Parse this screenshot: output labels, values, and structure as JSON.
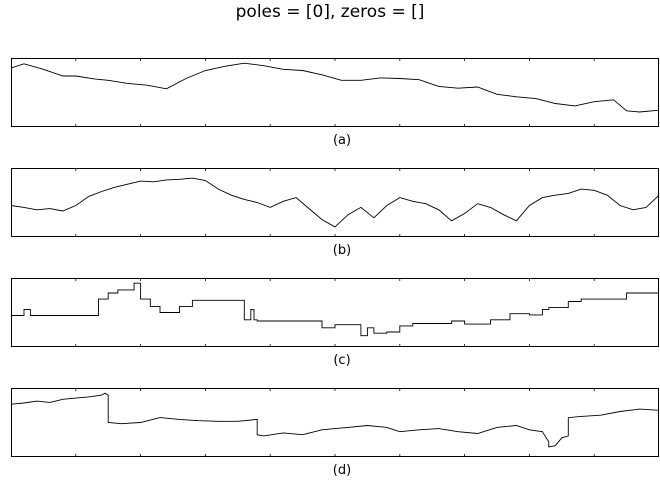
{
  "title": "poles = [0], zeros = []",
  "chart_data": [
    {
      "type": "line",
      "label": "(a)",
      "x_range": [
        0,
        1
      ],
      "y_range": [
        0,
        1
      ],
      "grid": false,
      "tick_labels": false,
      "series": [
        {
          "x": [
            0,
            0.02,
            0.05,
            0.08,
            0.1,
            0.13,
            0.15,
            0.18,
            0.21,
            0.24,
            0.27,
            0.3,
            0.33,
            0.36,
            0.39,
            0.42,
            0.45,
            0.48,
            0.51,
            0.54,
            0.57,
            0.6,
            0.63,
            0.66,
            0.69,
            0.72,
            0.75,
            0.78,
            0.81,
            0.84,
            0.87,
            0.9,
            0.93,
            0.95,
            0.97,
            1.0
          ],
          "y": [
            0.9,
            0.97,
            0.88,
            0.77,
            0.77,
            0.72,
            0.7,
            0.65,
            0.62,
            0.56,
            0.73,
            0.86,
            0.93,
            0.98,
            0.94,
            0.88,
            0.86,
            0.79,
            0.7,
            0.7,
            0.74,
            0.73,
            0.71,
            0.6,
            0.57,
            0.59,
            0.47,
            0.43,
            0.4,
            0.32,
            0.28,
            0.35,
            0.38,
            0.2,
            0.18,
            0.21
          ]
        }
      ]
    },
    {
      "type": "line",
      "label": "(b)",
      "x_range": [
        0,
        1
      ],
      "y_range": [
        0,
        1
      ],
      "grid": false,
      "tick_labels": false,
      "series": [
        {
          "x": [
            0,
            0.02,
            0.04,
            0.06,
            0.08,
            0.1,
            0.12,
            0.14,
            0.16,
            0.18,
            0.2,
            0.22,
            0.24,
            0.26,
            0.28,
            0.3,
            0.32,
            0.34,
            0.36,
            0.38,
            0.4,
            0.42,
            0.44,
            0.46,
            0.48,
            0.5,
            0.52,
            0.54,
            0.56,
            0.58,
            0.6,
            0.62,
            0.64,
            0.66,
            0.68,
            0.7,
            0.72,
            0.74,
            0.76,
            0.78,
            0.8,
            0.82,
            0.84,
            0.86,
            0.88,
            0.9,
            0.92,
            0.94,
            0.96,
            0.98,
            1.0
          ],
          "y": [
            0.45,
            0.42,
            0.38,
            0.4,
            0.36,
            0.45,
            0.6,
            0.68,
            0.75,
            0.8,
            0.85,
            0.84,
            0.87,
            0.88,
            0.9,
            0.86,
            0.72,
            0.62,
            0.55,
            0.5,
            0.42,
            0.52,
            0.58,
            0.4,
            0.22,
            0.1,
            0.3,
            0.42,
            0.25,
            0.45,
            0.58,
            0.52,
            0.48,
            0.38,
            0.2,
            0.32,
            0.48,
            0.42,
            0.3,
            0.2,
            0.45,
            0.58,
            0.62,
            0.65,
            0.72,
            0.7,
            0.62,
            0.45,
            0.38,
            0.42,
            0.62
          ]
        }
      ]
    },
    {
      "type": "line",
      "label": "(c)",
      "x_range": [
        0,
        1
      ],
      "y_range": [
        0,
        1
      ],
      "grid": false,
      "tick_labels": false,
      "series": [
        {
          "x": [
            0,
            0.02,
            0.02,
            0.03,
            0.03,
            0.135,
            0.135,
            0.15,
            0.15,
            0.165,
            0.165,
            0.19,
            0.19,
            0.2,
            0.2,
            0.215,
            0.215,
            0.23,
            0.23,
            0.26,
            0.26,
            0.28,
            0.28,
            0.36,
            0.36,
            0.37,
            0.37,
            0.375,
            0.375,
            0.38,
            0.38,
            0.48,
            0.48,
            0.5,
            0.5,
            0.54,
            0.54,
            0.55,
            0.55,
            0.56,
            0.56,
            0.58,
            0.58,
            0.6,
            0.6,
            0.62,
            0.62,
            0.68,
            0.68,
            0.7,
            0.7,
            0.74,
            0.74,
            0.77,
            0.77,
            0.8,
            0.8,
            0.82,
            0.82,
            0.83,
            0.83,
            0.86,
            0.86,
            0.88,
            0.88,
            0.95,
            0.95,
            1.0
          ],
          "y": [
            0.45,
            0.45,
            0.55,
            0.55,
            0.45,
            0.45,
            0.72,
            0.72,
            0.82,
            0.82,
            0.87,
            0.87,
            0.98,
            0.98,
            0.72,
            0.72,
            0.6,
            0.6,
            0.5,
            0.5,
            0.6,
            0.6,
            0.7,
            0.7,
            0.38,
            0.38,
            0.55,
            0.55,
            0.38,
            0.38,
            0.36,
            0.36,
            0.25,
            0.25,
            0.3,
            0.3,
            0.12,
            0.12,
            0.25,
            0.25,
            0.16,
            0.16,
            0.18,
            0.18,
            0.28,
            0.28,
            0.32,
            0.32,
            0.36,
            0.36,
            0.31,
            0.31,
            0.38,
            0.38,
            0.48,
            0.48,
            0.46,
            0.46,
            0.55,
            0.55,
            0.58,
            0.58,
            0.68,
            0.68,
            0.72,
            0.72,
            0.82,
            0.82
          ]
        }
      ]
    },
    {
      "type": "line",
      "label": "(d)",
      "x_range": [
        0,
        1
      ],
      "y_range": [
        0,
        1
      ],
      "grid": false,
      "tick_labels": false,
      "series": [
        {
          "x": [
            0,
            0.02,
            0.04,
            0.06,
            0.08,
            0.1,
            0.12,
            0.14,
            0.145,
            0.15,
            0.15,
            0.17,
            0.2,
            0.23,
            0.26,
            0.29,
            0.32,
            0.35,
            0.38,
            0.38,
            0.39,
            0.42,
            0.45,
            0.48,
            0.5,
            0.52,
            0.55,
            0.58,
            0.6,
            0.63,
            0.66,
            0.69,
            0.72,
            0.75,
            0.78,
            0.8,
            0.82,
            0.83,
            0.83,
            0.84,
            0.85,
            0.86,
            0.86,
            0.88,
            0.91,
            0.94,
            0.97,
            1.0
          ],
          "y": [
            0.8,
            0.82,
            0.85,
            0.83,
            0.88,
            0.9,
            0.92,
            0.95,
            0.98,
            0.95,
            0.5,
            0.48,
            0.5,
            0.58,
            0.55,
            0.53,
            0.52,
            0.52,
            0.55,
            0.3,
            0.28,
            0.33,
            0.3,
            0.38,
            0.4,
            0.42,
            0.45,
            0.42,
            0.35,
            0.38,
            0.4,
            0.35,
            0.32,
            0.42,
            0.45,
            0.38,
            0.35,
            0.18,
            0.1,
            0.12,
            0.25,
            0.28,
            0.58,
            0.6,
            0.62,
            0.68,
            0.72,
            0.7
          ]
        }
      ]
    }
  ]
}
